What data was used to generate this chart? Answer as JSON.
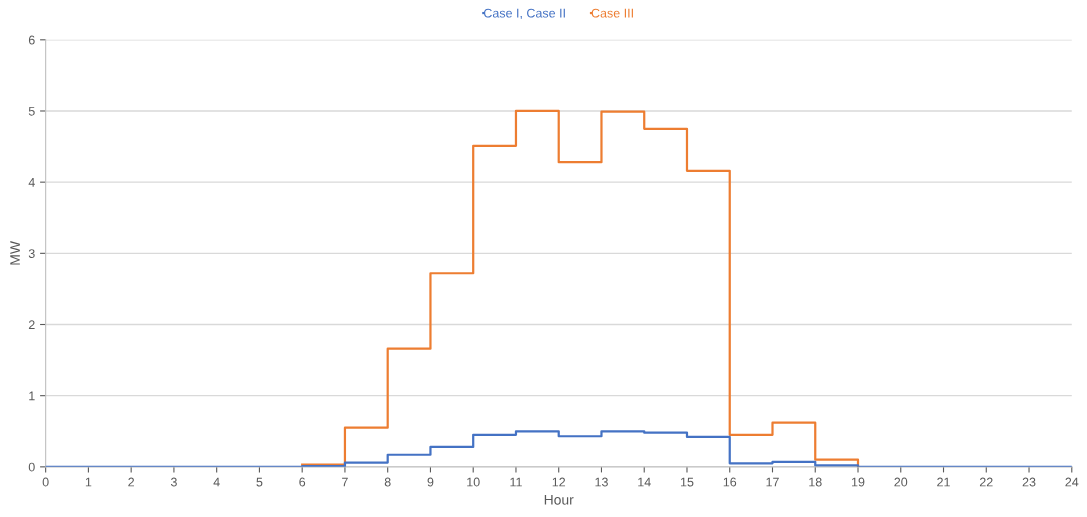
{
  "chart_data": {
    "type": "step",
    "xlabel": "Hour",
    "ylabel": "MW",
    "x": [
      0,
      1,
      2,
      3,
      4,
      5,
      6,
      7,
      8,
      9,
      10,
      11,
      12,
      13,
      14,
      15,
      16,
      17,
      18,
      19,
      20,
      21,
      22,
      23,
      24
    ],
    "series": [
      {
        "name": "Case I, Case II",
        "color": "#4472c4",
        "values": [
          0,
          0,
          0,
          0,
          0,
          0,
          0.01,
          0.06,
          0.17,
          0.28,
          0.45,
          0.5,
          0.43,
          0.5,
          0.48,
          0.42,
          0.05,
          0.07,
          0.02,
          0,
          0,
          0,
          0,
          0,
          0
        ]
      },
      {
        "name": "Case III",
        "color": "#ed7d31",
        "x": [
          6,
          7,
          8,
          9,
          10,
          11,
          12,
          13,
          14,
          15,
          16,
          17,
          18,
          19
        ],
        "values": [
          0.03,
          0.55,
          1.66,
          2.72,
          4.51,
          5.0,
          4.28,
          4.99,
          4.75,
          4.16,
          0.45,
          0.62,
          0.1,
          0
        ]
      }
    ],
    "xlim": [
      0,
      24
    ],
    "xticks": [
      0,
      1,
      2,
      3,
      4,
      5,
      6,
      7,
      8,
      9,
      10,
      11,
      12,
      13,
      14,
      15,
      16,
      17,
      18,
      19,
      20,
      21,
      22,
      23,
      24
    ],
    "ylim": [
      0,
      6
    ],
    "yticks": [
      0,
      1,
      2,
      3,
      4,
      5,
      6
    ],
    "grid": "y",
    "legend": "top"
  }
}
